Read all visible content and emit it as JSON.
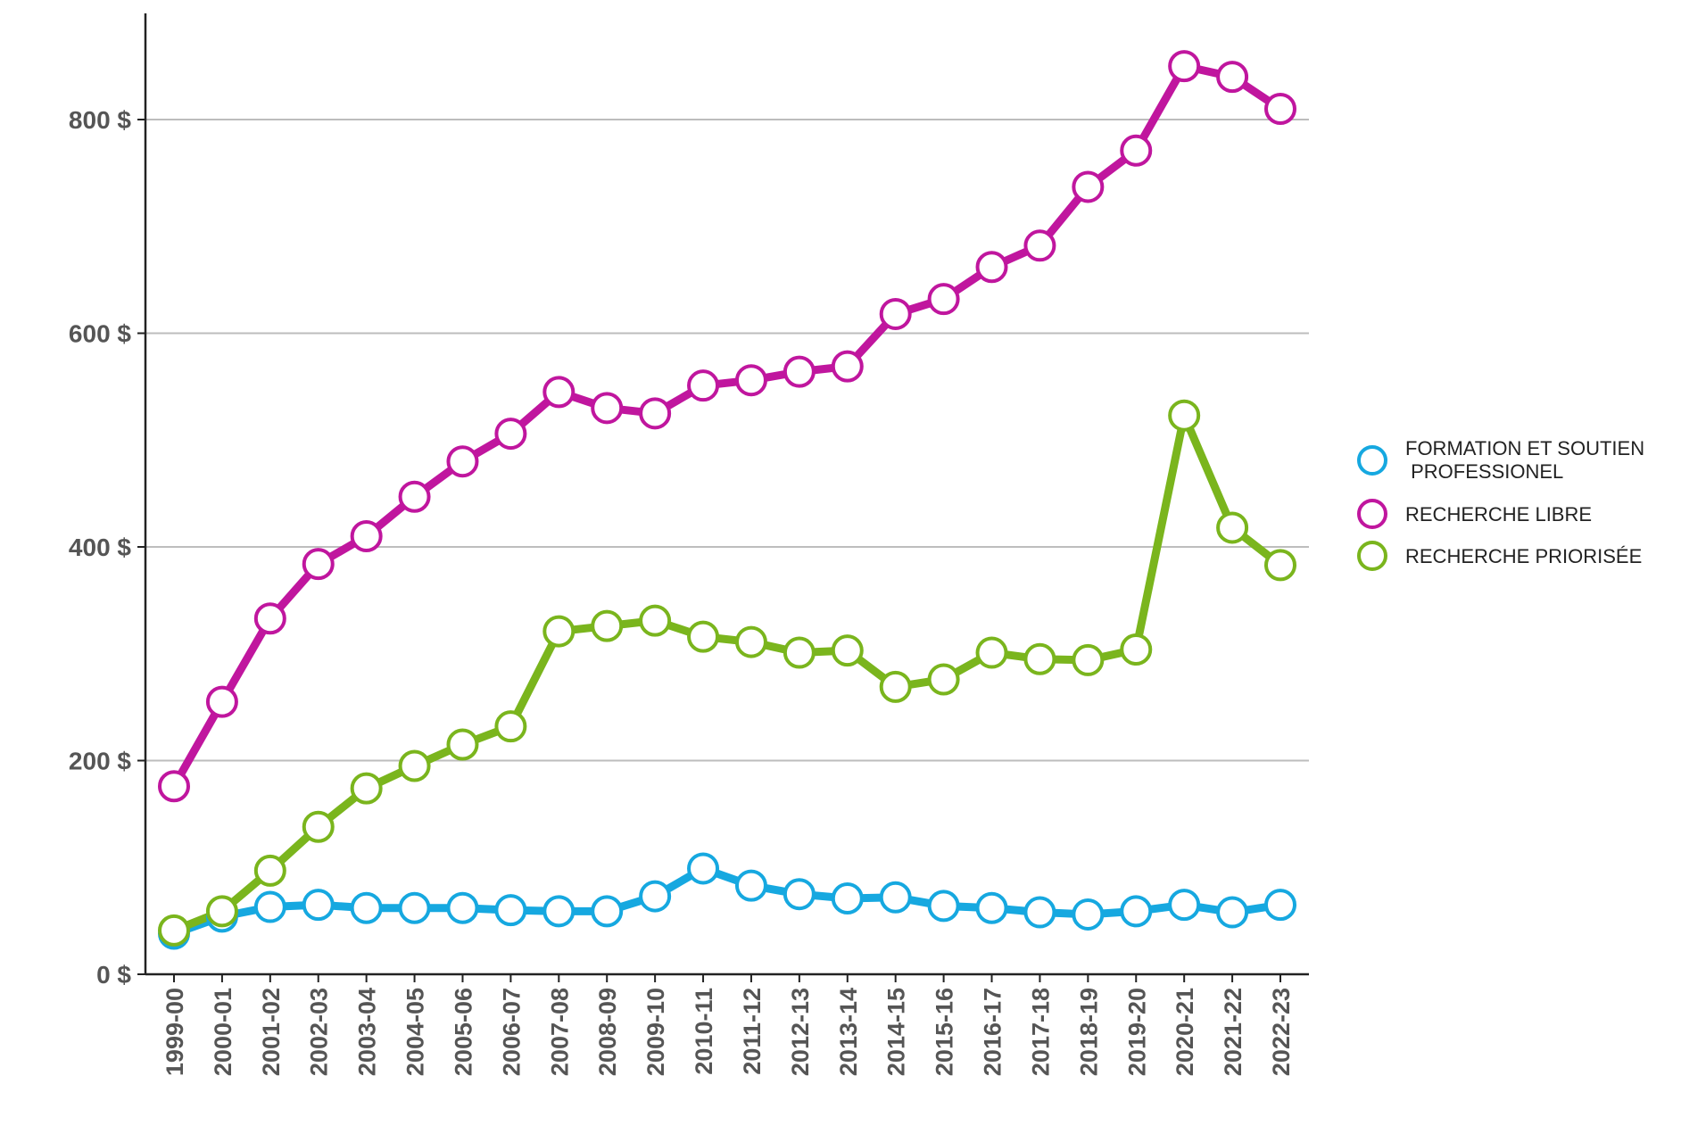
{
  "chart_data": {
    "type": "line",
    "categories": [
      "1999-00",
      "2000-01",
      "2001-02",
      "2002-03",
      "2003-04",
      "2004-05",
      "2005-06",
      "2006-07",
      "2007-08",
      "2008-09",
      "2009-10",
      "2010-11",
      "2011-12",
      "2012-13",
      "2013-14",
      "2014-15",
      "2015-16",
      "2016-17",
      "2017-18",
      "2018-19",
      "2019-20",
      "2020-21",
      "2021-22",
      "2022-23"
    ],
    "ylim": [
      0,
      900
    ],
    "yticks": [
      0,
      200,
      400,
      600,
      800
    ],
    "ytick_labels": [
      "0 $",
      "200 $",
      "400 $",
      "600 $",
      "800 $"
    ],
    "grid": true,
    "legend_position": "right",
    "series": [
      {
        "name": "FORMATION ET SOUTIEN PROFESSIONEL",
        "name_lines": [
          "FORMATION ET SOUTIEN",
          " PROFESSIONEL"
        ],
        "color": "#16a8e0",
        "values": [
          38,
          54,
          63,
          65,
          62,
          62,
          62,
          60,
          59,
          59,
          73,
          99,
          83,
          75,
          71,
          72,
          64,
          62,
          58,
          56,
          59,
          65,
          58,
          65
        ]
      },
      {
        "name": "RECHERCHE LIBRE",
        "name_lines": [
          "RECHERCHE LIBRE"
        ],
        "color": "#c0169e",
        "values": [
          176,
          255,
          333,
          384,
          410,
          447,
          480,
          506,
          545,
          530,
          525,
          551,
          556,
          564,
          569,
          618,
          632,
          662,
          682,
          737,
          771,
          850,
          840,
          810
        ]
      },
      {
        "name": "RECHERCHE PRIORISÉE",
        "name_lines": [
          "RECHERCHE PRIORISÉE"
        ],
        "color": "#7ab51d",
        "values": [
          41,
          59,
          97,
          138,
          174,
          195,
          215,
          232,
          321,
          326,
          331,
          316,
          311,
          301,
          303,
          269,
          276,
          301,
          295,
          294,
          304,
          523,
          418,
          383
        ]
      }
    ]
  }
}
